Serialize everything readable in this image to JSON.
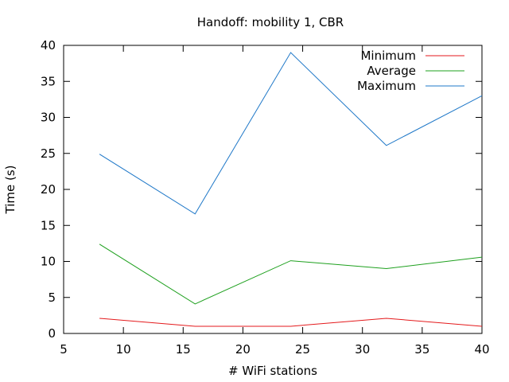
{
  "chart_data": {
    "type": "line",
    "title": "Handoff: mobility 1, CBR",
    "xlabel": "# WiFi stations",
    "ylabel": "Time (s)",
    "xlim": [
      5,
      40
    ],
    "ylim": [
      0,
      40
    ],
    "xticks": [
      5,
      10,
      15,
      20,
      25,
      30,
      35,
      40
    ],
    "yticks": [
      0,
      5,
      10,
      15,
      20,
      25,
      30,
      35,
      40
    ],
    "grid": false,
    "legend_position": "top-right",
    "x": [
      8,
      16,
      24,
      32,
      40
    ],
    "series": [
      {
        "name": "Minimum",
        "color": "#e41a1c",
        "values": [
          2.1,
          1.0,
          1.0,
          2.1,
          1.0
        ]
      },
      {
        "name": "Average",
        "color": "#1ea01e",
        "values": [
          12.4,
          4.1,
          10.1,
          9.0,
          10.6
        ]
      },
      {
        "name": "Maximum",
        "color": "#1f78c8",
        "values": [
          24.9,
          16.6,
          39.0,
          26.1,
          33.0
        ]
      }
    ]
  }
}
